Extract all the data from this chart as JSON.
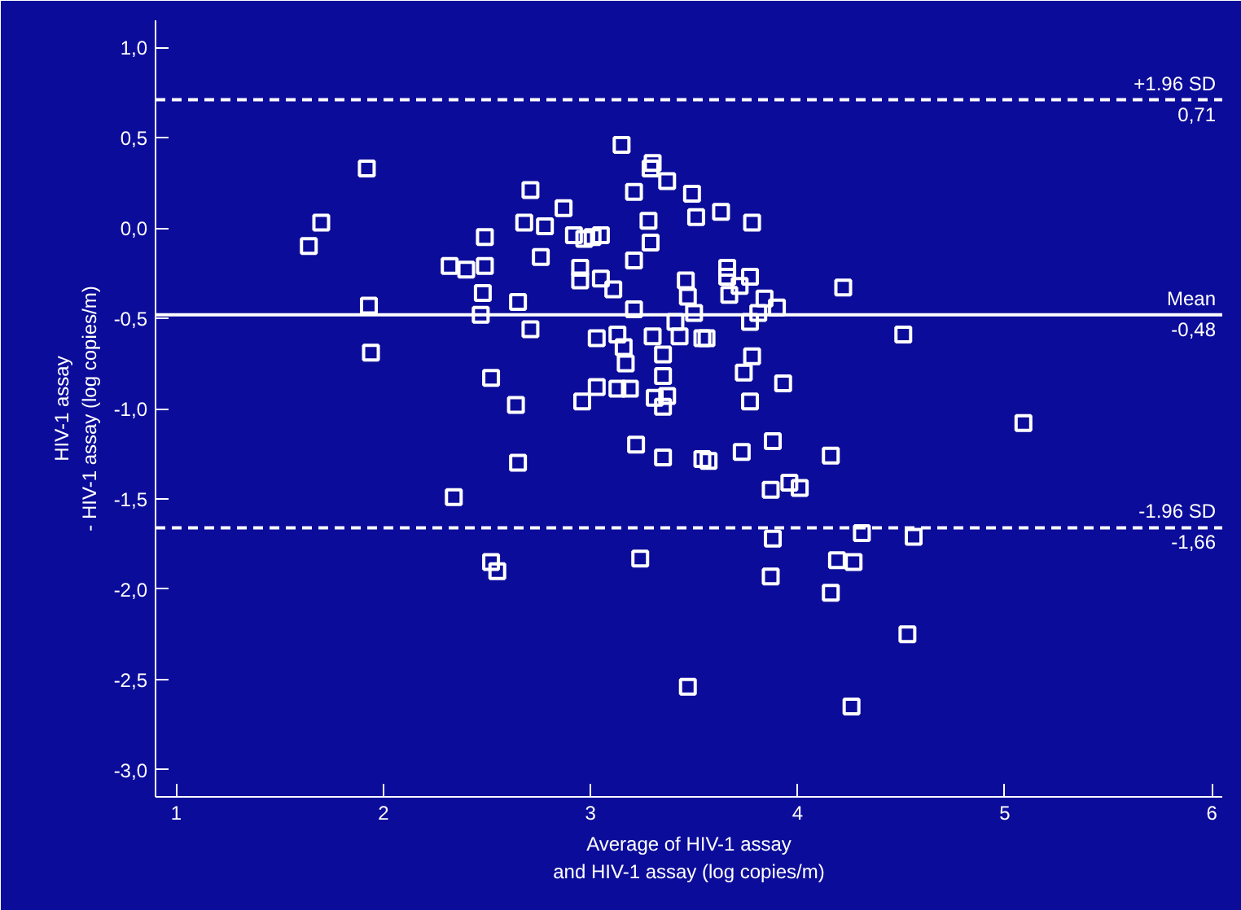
{
  "chart_data": {
    "type": "scatter",
    "xlabel": "Average of HIV-1 assay\nand HIV-1 assay (log copies/m)",
    "ylabel": "HIV-1 assay\n- HIV-1 assay (log copies/m)",
    "xlim": [
      0.9,
      6.05
    ],
    "ylim": [
      -3.15,
      1.15
    ],
    "xticks": [
      1,
      2,
      3,
      4,
      5,
      6
    ],
    "yticks": [
      {
        "value": 1.0,
        "label": "1,0"
      },
      {
        "value": 0.5,
        "label": "0,5"
      },
      {
        "value": 0.0,
        "label": "0,0"
      },
      {
        "value": -0.5,
        "label": "-0,5"
      },
      {
        "value": -1.0,
        "label": "-1,0"
      },
      {
        "value": -1.5,
        "label": "-1,5"
      },
      {
        "value": -2.0,
        "label": "-2,0"
      },
      {
        "value": -2.5,
        "label": "-2,5"
      },
      {
        "value": -3.0,
        "label": "-3,0"
      }
    ],
    "grid": false,
    "marker": "square",
    "ref_lines": [
      {
        "axis": "y",
        "value": 0.71,
        "label": "+1.96 SD",
        "line_style": "dashed",
        "color": "#ffffff"
      },
      {
        "axis": "y",
        "value": -0.48,
        "label": "Mean",
        "line_style": "solid",
        "color": "#ffffff"
      },
      {
        "axis": "y",
        "value": -1.66,
        "label": "-1.96 SD",
        "line_style": "dashed",
        "color": "#ffffff"
      }
    ],
    "annotations": [
      {
        "text": "0,71",
        "y": 0.71
      },
      {
        "text": "-0,48",
        "y": -0.48
      },
      {
        "text": "-1,66",
        "y": -1.66
      }
    ],
    "series": [
      {
        "color": "#ffffff",
        "x": [
          1.92,
          1.7,
          1.64,
          1.93,
          1.94,
          3.15,
          3.3,
          3.29,
          3.37,
          3.21,
          2.71,
          3.49,
          2.87,
          3.28,
          3.51,
          2.68,
          2.78,
          2.49,
          2.92,
          2.97,
          3.01,
          3.05,
          3.29,
          2.76,
          3.21,
          2.32,
          2.4,
          2.49,
          2.95,
          2.95,
          3.05,
          3.11,
          3.46,
          3.47,
          2.48,
          2.65,
          2.47,
          3.21,
          3.5,
          3.41,
          2.71,
          3.03,
          3.13,
          3.3,
          3.43,
          3.54,
          3.16,
          3.35,
          3.17,
          2.52,
          3.35,
          3.03,
          3.13,
          3.19,
          3.31,
          3.37,
          3.35,
          2.64,
          2.96,
          3.63,
          3.78,
          3.66,
          3.66,
          3.77,
          3.72,
          3.67,
          3.84,
          3.9,
          3.81,
          3.77,
          3.56,
          4.22,
          4.51,
          3.78,
          3.74,
          3.93,
          3.77,
          5.09,
          3.22,
          3.35,
          2.65,
          3.54,
          2.34,
          2.52,
          2.55,
          3.24,
          3.47,
          3.57,
          3.73,
          3.88,
          4.16,
          3.87,
          3.96,
          4.01,
          3.88,
          4.31,
          4.56,
          4.19,
          4.27,
          3.87,
          4.16,
          4.53,
          4.26
        ],
        "values": [
          0.33,
          0.03,
          -0.1,
          -0.43,
          -0.69,
          0.46,
          0.36,
          0.33,
          0.26,
          0.2,
          0.21,
          0.19,
          0.11,
          0.04,
          0.06,
          0.03,
          0.01,
          -0.05,
          -0.04,
          -0.06,
          -0.05,
          -0.04,
          -0.08,
          -0.16,
          -0.18,
          -0.21,
          -0.23,
          -0.21,
          -0.22,
          -0.29,
          -0.28,
          -0.34,
          -0.29,
          -0.38,
          -0.36,
          -0.41,
          -0.48,
          -0.45,
          -0.47,
          -0.52,
          -0.56,
          -0.61,
          -0.59,
          -0.6,
          -0.6,
          -0.61,
          -0.66,
          -0.7,
          -0.75,
          -0.83,
          -0.82,
          -0.88,
          -0.89,
          -0.89,
          -0.94,
          -0.93,
          -0.99,
          -0.98,
          -0.96,
          0.09,
          0.03,
          -0.22,
          -0.27,
          -0.27,
          -0.32,
          -0.37,
          -0.39,
          -0.44,
          -0.47,
          -0.52,
          -0.61,
          -0.33,
          -0.59,
          -0.71,
          -0.8,
          -0.86,
          -0.96,
          -1.08,
          -1.2,
          -1.27,
          -1.3,
          -1.28,
          -1.49,
          -1.85,
          -1.9,
          -1.83,
          -2.54,
          -1.29,
          -1.24,
          -1.18,
          -1.26,
          -1.45,
          -1.41,
          -1.44,
          -1.72,
          -1.69,
          -1.71,
          -1.84,
          -1.85,
          -1.93,
          -2.02,
          -2.25,
          -2.65
        ]
      }
    ]
  }
}
